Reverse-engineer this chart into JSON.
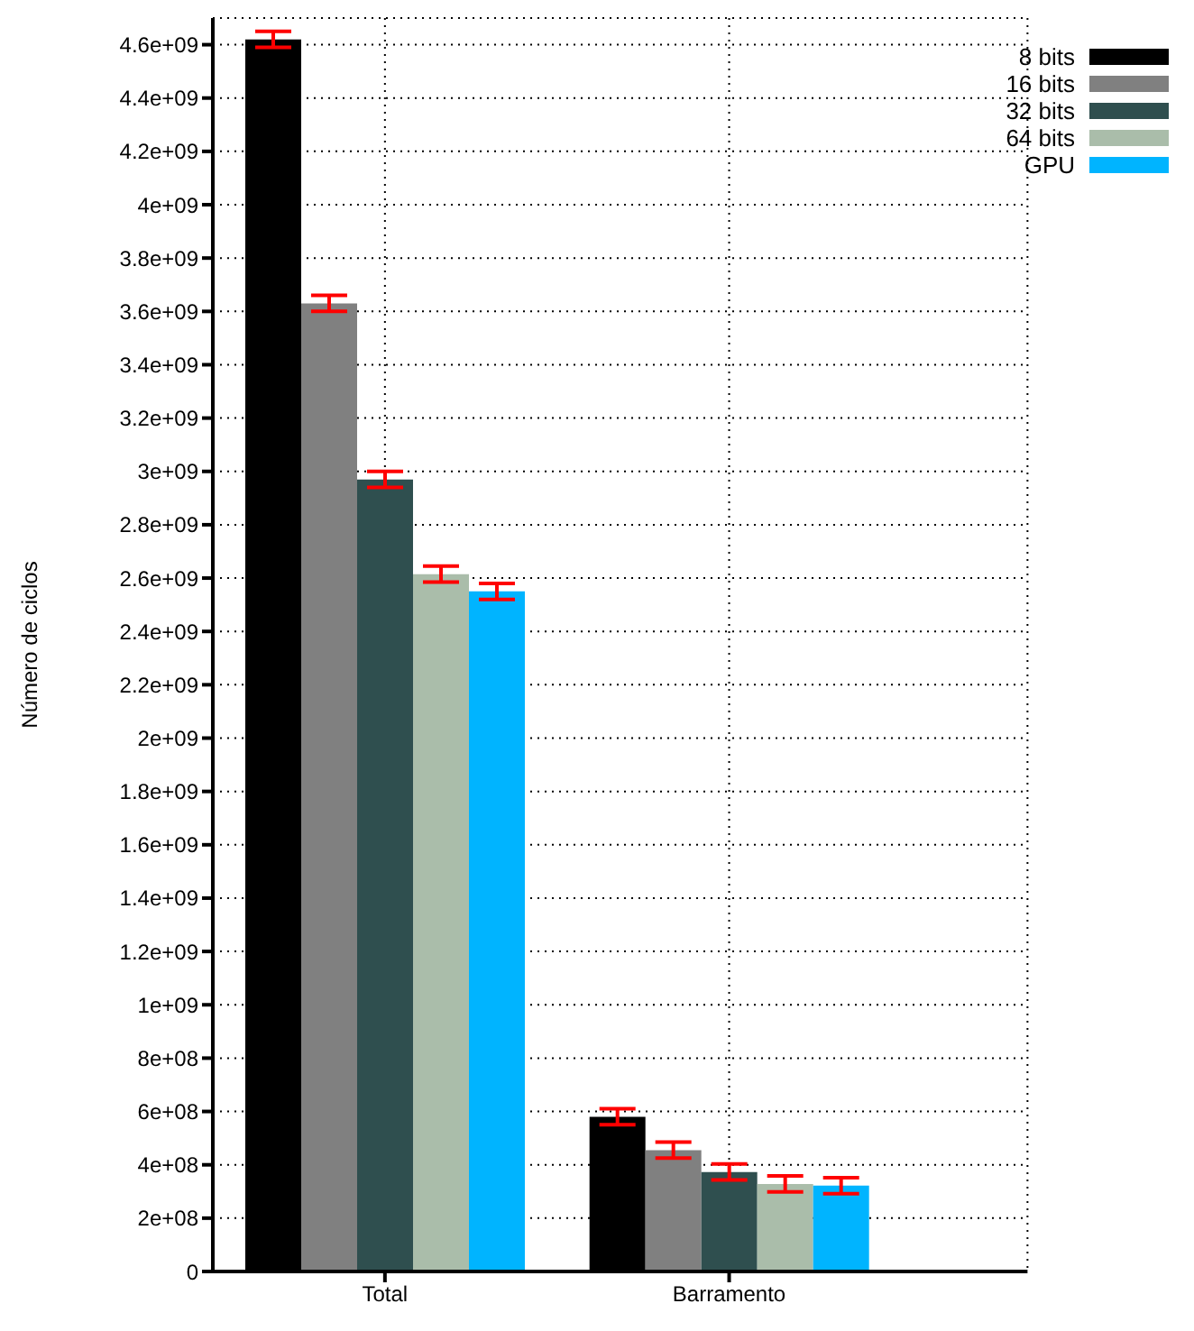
{
  "chart_data": {
    "type": "bar",
    "ylabel": "Número de ciclos",
    "categories": [
      "Total",
      "Barramento"
    ],
    "series": [
      {
        "name": "8 bits",
        "color": "#000000",
        "values": [
          4620000000,
          580000000
        ],
        "errors": [
          30000000,
          30000000
        ]
      },
      {
        "name": "16 bits",
        "color": "#808080",
        "values": [
          3630000000,
          455000000
        ],
        "errors": [
          30000000,
          30000000
        ]
      },
      {
        "name": "32 bits",
        "color": "#2f4f4f",
        "values": [
          2970000000,
          373000000
        ],
        "errors": [
          30000000,
          30000000
        ]
      },
      {
        "name": "64 bits",
        "color": "#aabdaa",
        "values": [
          2615000000,
          328000000
        ],
        "errors": [
          30000000,
          30000000
        ]
      },
      {
        "name": "GPU",
        "color": "#00b4ff",
        "values": [
          2550000000,
          322000000
        ],
        "errors": [
          30000000,
          30000000
        ]
      }
    ],
    "ylim": [
      0,
      4700000000
    ],
    "yticks": [
      0,
      {
        "value": 200000000,
        "label": "2e+08"
      },
      {
        "value": 400000000,
        "label": "4e+08"
      },
      {
        "value": 600000000,
        "label": "6e+08"
      },
      {
        "value": 800000000,
        "label": "8e+08"
      },
      {
        "value": 1000000000,
        "label": "1e+09"
      },
      {
        "value": 1200000000,
        "label": "1.2e+09"
      },
      {
        "value": 1400000000,
        "label": "1.4e+09"
      },
      {
        "value": 1600000000,
        "label": "1.6e+09"
      },
      {
        "value": 1800000000,
        "label": "1.8e+09"
      },
      {
        "value": 2000000000,
        "label": "2e+09"
      },
      {
        "value": 2200000000,
        "label": "2.2e+09"
      },
      {
        "value": 2400000000,
        "label": "2.4e+09"
      },
      {
        "value": 2600000000,
        "label": "2.6e+09"
      },
      {
        "value": 2800000000,
        "label": "2.8e+09"
      },
      {
        "value": 3000000000,
        "label": "3e+09"
      },
      {
        "value": 3200000000,
        "label": "3.2e+09"
      },
      {
        "value": 3400000000,
        "label": "3.4e+09"
      },
      {
        "value": 3600000000,
        "label": "3.6e+09"
      },
      {
        "value": 3800000000,
        "label": "3.8e+09"
      },
      {
        "value": 4000000000,
        "label": "4e+09"
      },
      {
        "value": 4200000000,
        "label": "4.2e+09"
      },
      {
        "value": 4400000000,
        "label": "4.4e+09"
      },
      {
        "value": 4600000000,
        "label": "4.6e+09"
      }
    ],
    "grid": true,
    "legend": "top right"
  }
}
